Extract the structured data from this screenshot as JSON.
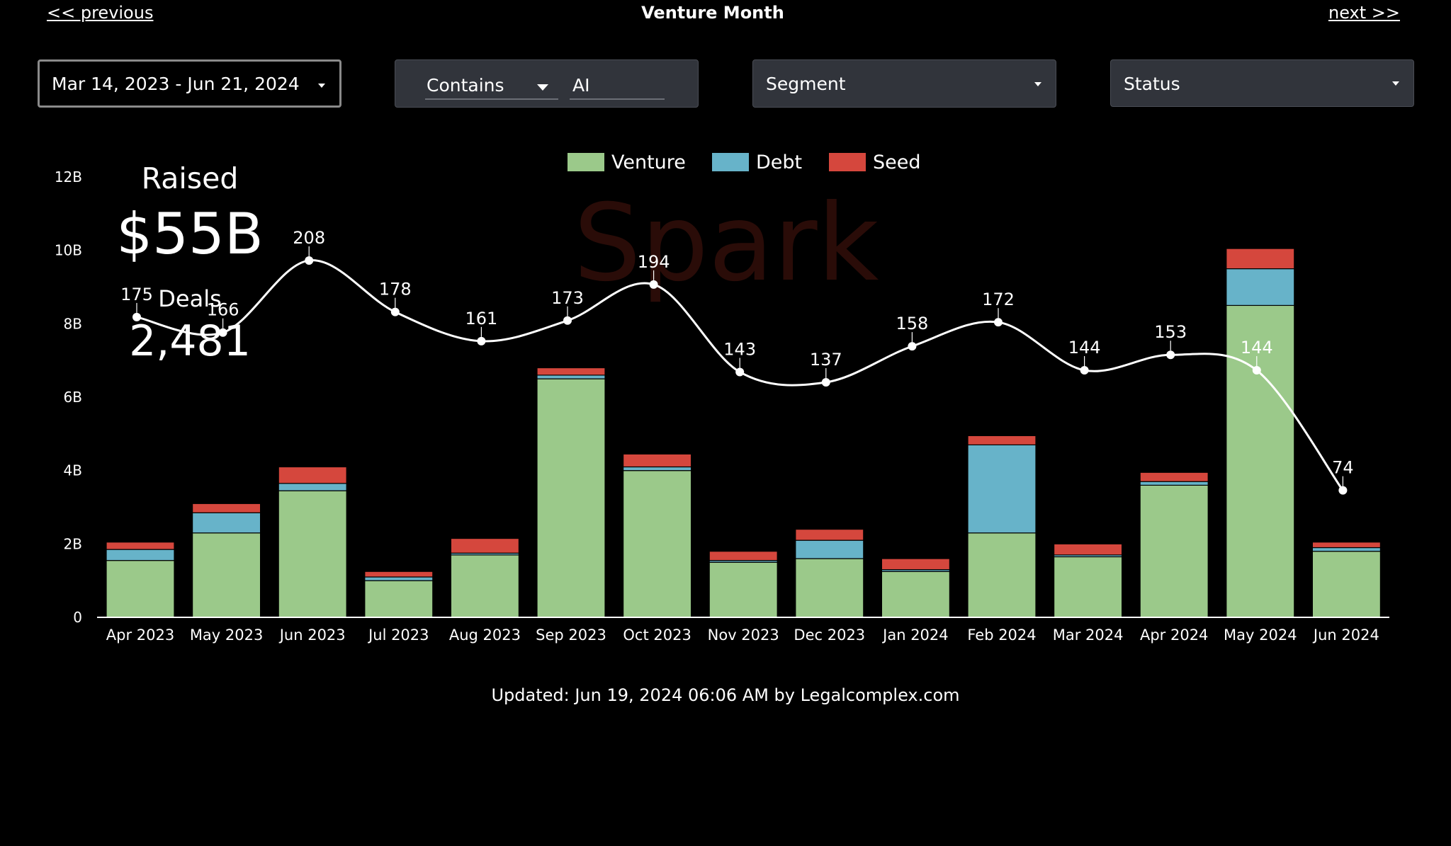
{
  "nav": {
    "prev": "<< previous",
    "next": "next >>",
    "title": "Venture Month"
  },
  "filters": {
    "date_range": "Mar 14, 2023 - Jun 21, 2024",
    "contains_mode": "Contains",
    "contains_value": "AI",
    "segment": "Segment",
    "status": "Status"
  },
  "kpi": {
    "raised_label": "Raised",
    "raised_value": "$55B",
    "deals_label": "Deals",
    "deals_value": "2,481"
  },
  "watermark": "Spark",
  "colors": {
    "venture": "#9bc98a",
    "debt": "#67b3c9",
    "seed": "#d5473d",
    "line": "#ffffff",
    "background": "#000000"
  },
  "chart_data": {
    "type": "bar",
    "stacked": true,
    "categories": [
      "Apr 2023",
      "May 2023",
      "Jun 2023",
      "Jul 2023",
      "Aug 2023",
      "Sep 2023",
      "Oct 2023",
      "Nov 2023",
      "Dec 2023",
      "Jan 2024",
      "Feb 2024",
      "Mar 2024",
      "Apr 2024",
      "May 2024",
      "Jun 2024"
    ],
    "series": [
      {
        "name": "Venture",
        "values": [
          1.55,
          2.3,
          3.45,
          1.0,
          1.7,
          6.5,
          4.0,
          1.5,
          1.6,
          1.25,
          2.3,
          1.65,
          3.6,
          8.5,
          1.8
        ]
      },
      {
        "name": "Debt",
        "values": [
          0.3,
          0.55,
          0.2,
          0.1,
          0.05,
          0.1,
          0.1,
          0.05,
          0.5,
          0.05,
          2.4,
          0.05,
          0.1,
          1.0,
          0.1
        ]
      },
      {
        "name": "Seed",
        "values": [
          0.2,
          0.25,
          0.45,
          0.15,
          0.4,
          0.2,
          0.35,
          0.25,
          0.3,
          0.3,
          0.25,
          0.3,
          0.25,
          0.55,
          0.15
        ]
      }
    ],
    "line": {
      "name": "Deals",
      "values": [
        175,
        166,
        208,
        178,
        161,
        173,
        194,
        143,
        137,
        158,
        172,
        144,
        153,
        144,
        74
      ]
    },
    "y_ticks": [
      "0",
      "2B",
      "4B",
      "6B",
      "8B",
      "10B",
      "12B"
    ],
    "ylim": [
      0,
      12
    ],
    "legend": "top-center",
    "grid": false
  },
  "footer": "Updated: Jun 19, 2024 06:06 AM by Legalcomplex.com"
}
